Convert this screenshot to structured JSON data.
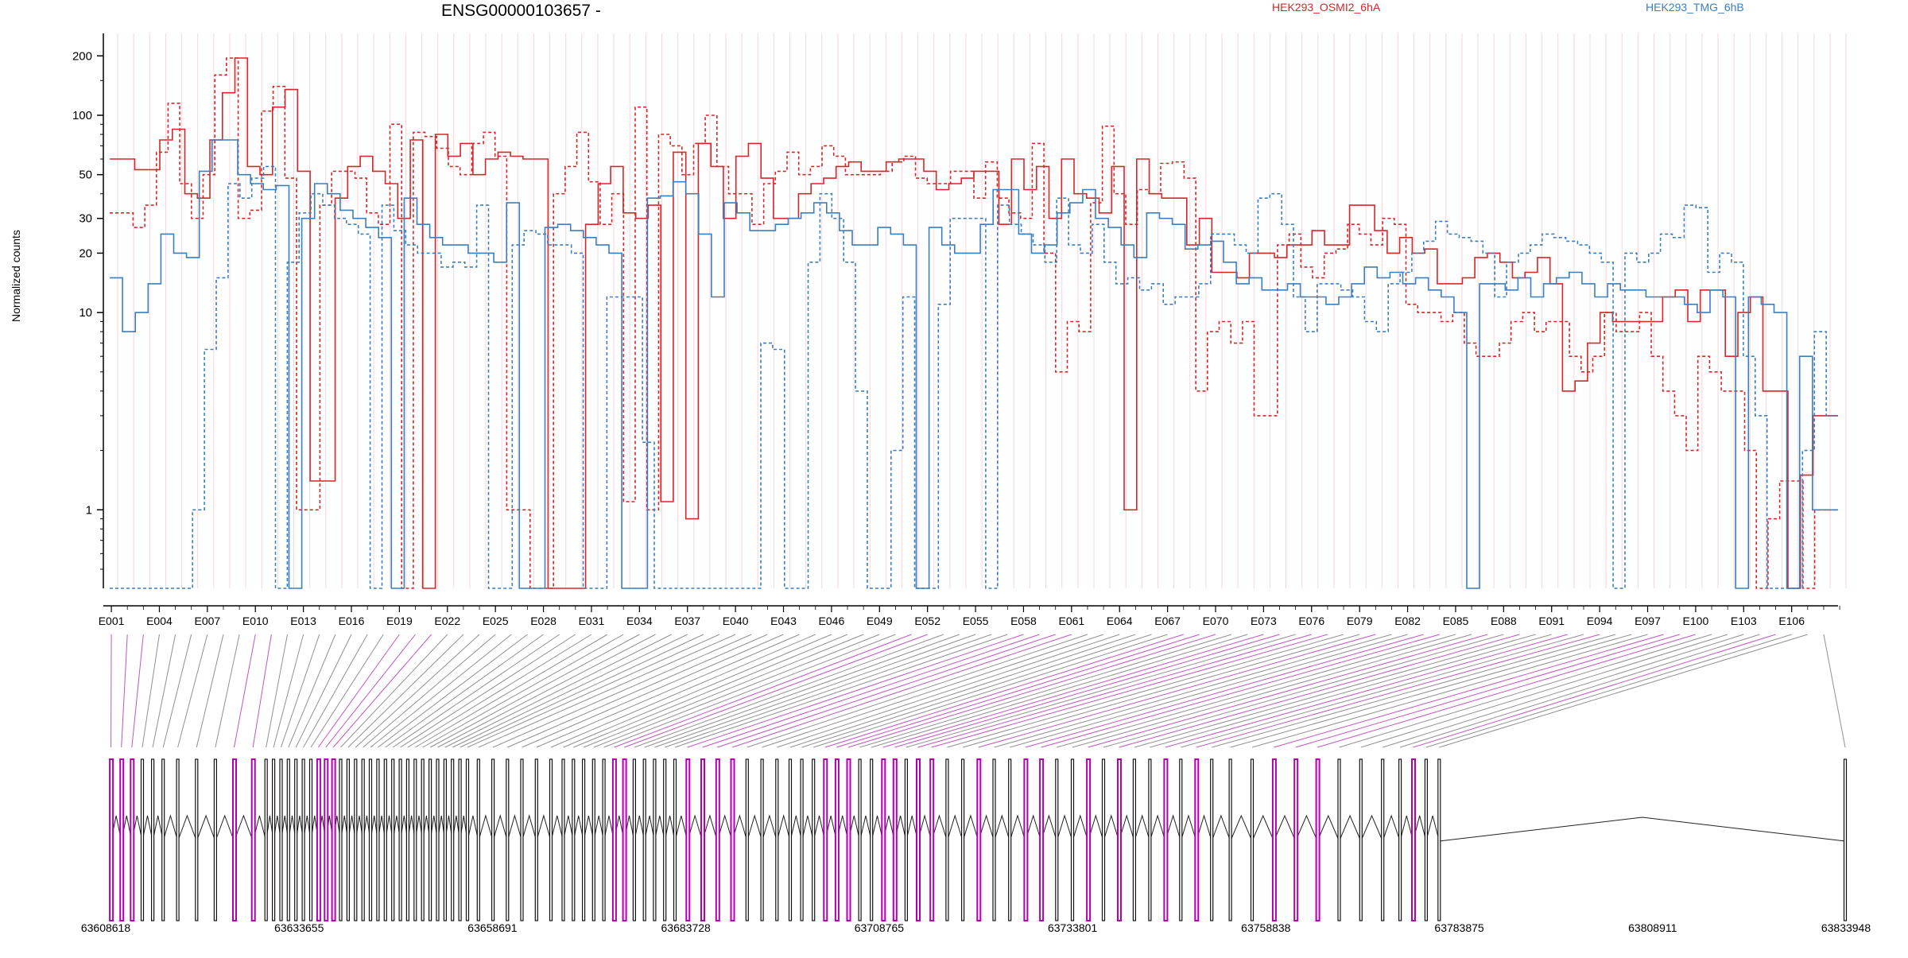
{
  "chart_data": {
    "type": "line",
    "title": "ENSG00000103657 -",
    "ylabel": "Normalized counts",
    "yscale": "log",
    "ylim": [
      0.4,
      260
    ],
    "yticks": [
      1,
      10,
      20,
      30,
      50,
      100,
      200
    ],
    "ytick_labels": [
      "1",
      "10",
      "20",
      "30",
      "50",
      "100",
      "200"
    ],
    "exon_count": 108,
    "exon_tick_labels": [
      "E001",
      "E004",
      "E007",
      "E010",
      "E013",
      "E016",
      "E019",
      "E022",
      "E025",
      "E028",
      "E031",
      "E034",
      "E037",
      "E040",
      "E043",
      "E046",
      "E049",
      "E052",
      "E055",
      "E058",
      "E061",
      "E064",
      "E067",
      "E070",
      "E073",
      "E076",
      "E079",
      "E082",
      "E085",
      "E088",
      "E091",
      "E094",
      "E097",
      "E100",
      "E103",
      "E106"
    ],
    "legend": [
      {
        "name": "HEK293_OSMI2_6hA",
        "color": "#d62728"
      },
      {
        "name": "HEK293_TMG_6hB",
        "color": "#3a7fc1"
      }
    ],
    "genomic_axis": {
      "start": 63608618,
      "end": 63833948,
      "tick_labels": [
        "63608618",
        "63633655",
        "63658691",
        "63683728",
        "63708765",
        "63733801",
        "63758838",
        "63783875",
        "63808911",
        "63833948"
      ]
    },
    "series": [
      {
        "name": "HEK293_OSMI2_6hA",
        "color": "#d62728",
        "style": "solid",
        "values": [
          60,
          60,
          53,
          53,
          75,
          85,
          40,
          38,
          75,
          130,
          195,
          55,
          50,
          110,
          135,
          52,
          1.4,
          1.4,
          38,
          55,
          62,
          52,
          45,
          30,
          75,
          0.4,
          80,
          62,
          72,
          50,
          60,
          65,
          62,
          60,
          60,
          0.4,
          0.4,
          0.4,
          28,
          45,
          55,
          32,
          30,
          35,
          1.1,
          65,
          0.9,
          72,
          55,
          30,
          62,
          72,
          48,
          30,
          30,
          40,
          45,
          48,
          55,
          58,
          52,
          52,
          58,
          60,
          60,
          52,
          42,
          45,
          48,
          52,
          52,
          28,
          60,
          42,
          55,
          30,
          60,
          40,
          38,
          32,
          55,
          1.0,
          60,
          40,
          38,
          38,
          22,
          30,
          16,
          16,
          15,
          20,
          20,
          19,
          22,
          22,
          26,
          22,
          22,
          35,
          35,
          26,
          20,
          24,
          20,
          21,
          14,
          14,
          15,
          19,
          20,
          18,
          15,
          16,
          19,
          14,
          4,
          4.5,
          7,
          10,
          9,
          9,
          9,
          9,
          12,
          13,
          9,
          13,
          13,
          6,
          10,
          12,
          4,
          4,
          0.4,
          1.5,
          3,
          3
        ]
      },
      {
        "name": "HEK293_OSMI2_6hA",
        "color": "#d62728",
        "style": "dashed",
        "values": [
          32,
          32,
          27,
          35,
          65,
          115,
          45,
          30,
          50,
          160,
          195,
          30,
          33,
          105,
          140,
          48,
          1.0,
          1.0,
          35,
          52,
          52,
          48,
          32,
          28,
          90,
          0.4,
          82,
          78,
          68,
          55,
          50,
          72,
          82,
          62,
          1.0,
          1.0,
          0.4,
          0.4,
          40,
          55,
          82,
          46,
          28,
          40,
          1.1,
          110,
          1.0,
          80,
          70,
          50,
          72,
          100,
          55,
          40,
          40,
          28,
          45,
          52,
          65,
          50,
          55,
          70,
          62,
          50,
          50,
          50,
          52,
          58,
          62,
          48,
          45,
          45,
          52,
          52,
          38,
          58,
          38,
          32,
          30,
          72,
          20,
          5,
          9,
          8,
          36,
          88,
          40,
          28,
          42,
          40,
          57,
          58,
          48,
          4,
          8,
          9,
          7,
          9,
          3,
          3,
          22,
          25,
          17,
          15,
          20,
          21,
          28,
          25,
          22,
          30,
          28,
          11,
          10,
          10,
          9,
          10,
          7,
          6,
          6,
          7,
          9,
          10,
          8,
          9,
          9,
          6,
          5,
          6,
          10,
          8,
          8,
          10,
          6,
          4,
          3,
          2,
          6,
          5,
          4,
          4,
          2,
          0.4,
          0.9,
          1.4,
          1.4,
          0.4,
          1,
          1
        ]
      },
      {
        "name": "HEK293_TMG_6hB",
        "color": "#3a7fc1",
        "style": "solid",
        "values": [
          15,
          8,
          10,
          14,
          25,
          20,
          19,
          52,
          75,
          75,
          50,
          45,
          42,
          44,
          0.4,
          30,
          45,
          40,
          33,
          30,
          27,
          24,
          0.4,
          38,
          28,
          24,
          22,
          22,
          20,
          20,
          18,
          36,
          0.4,
          0.4,
          27,
          28,
          26,
          24,
          22,
          20,
          0.4,
          0.4,
          38,
          39,
          46,
          40,
          25,
          12,
          36,
          32,
          26,
          26,
          28,
          30,
          32,
          36,
          32,
          26,
          22,
          22,
          27,
          25,
          22,
          0.4,
          27,
          22,
          20,
          20,
          28,
          42,
          42,
          25,
          20,
          22,
          32,
          36,
          42,
          30,
          27,
          22,
          19,
          32,
          30,
          28,
          21,
          22,
          23,
          18,
          14,
          15,
          13,
          13,
          14,
          12,
          12,
          11,
          12,
          14,
          17,
          15,
          16,
          14,
          15,
          13,
          12,
          10,
          0.4,
          14,
          14,
          13,
          15,
          12,
          14,
          15,
          16,
          14,
          12,
          14,
          13,
          13,
          12,
          12,
          12,
          11,
          10,
          13,
          12,
          0.4,
          12,
          11,
          10,
          0.4,
          6,
          1,
          1
        ]
      },
      {
        "name": "HEK293_TMG_6hB",
        "color": "#3a7fc1",
        "style": "dashed",
        "values": [
          0.4,
          0.4,
          0.4,
          0.4,
          0.4,
          0.4,
          0.4,
          1.0,
          6.5,
          15,
          45,
          38,
          48,
          55,
          0.4,
          18,
          32,
          40,
          35,
          30,
          28,
          25,
          0.4,
          35,
          26,
          22,
          20,
          20,
          17,
          18,
          17,
          35,
          0.4,
          0.4,
          22,
          26,
          25,
          22,
          22,
          20,
          0.4,
          0.4,
          12,
          12,
          12,
          2.2,
          0.4,
          0.4,
          0.4,
          0.4,
          0.4,
          0.4,
          0.4,
          0.4,
          0.4,
          7,
          6.5,
          0.4,
          0.4,
          18,
          40,
          30,
          18,
          4,
          0.4,
          0.4,
          2,
          12,
          0.4,
          0.4,
          11,
          30,
          30,
          30,
          0.4,
          35,
          28,
          25,
          22,
          18,
          38,
          22,
          20,
          28,
          18,
          14,
          15,
          13,
          14,
          11,
          12,
          12,
          14,
          25,
          25,
          22,
          20,
          38,
          40,
          28,
          12,
          8,
          14,
          14,
          13,
          12,
          9,
          8,
          14,
          16,
          20,
          23,
          29,
          25,
          24,
          23,
          20,
          12,
          18,
          20,
          22,
          25,
          24,
          23,
          22,
          20,
          18,
          0.4,
          20,
          18,
          20,
          25,
          24,
          35,
          34,
          16,
          20,
          18,
          6,
          3,
          0.4,
          0.4,
          0.4,
          2,
          8,
          3
        ]
      }
    ]
  }
}
